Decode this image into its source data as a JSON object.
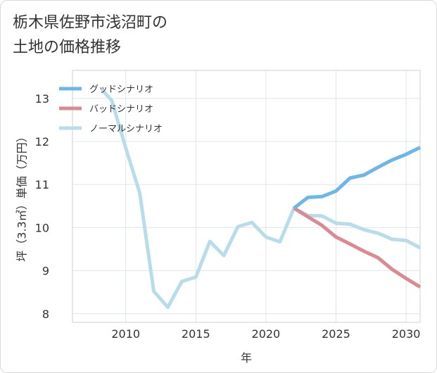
{
  "title_line1": "栃木県佐野市浅沼町の",
  "title_line2": "土地の価格推移",
  "chart_data": {
    "type": "line",
    "xlabel": "年",
    "ylabel": "坪（3.3㎡）単価（万円）",
    "xlim": [
      2006.2,
      2031
    ],
    "ylim": [
      7.8,
      13.65
    ],
    "x_ticks": [
      2010,
      2015,
      2020,
      2025,
      2030
    ],
    "y_ticks": [
      8,
      9,
      10,
      11,
      12,
      13
    ],
    "grid": true,
    "legend_position": "top-left",
    "series": [
      {
        "name": "グッドシナリオ",
        "color": "#6cb7ea",
        "x": [
          2022,
          2023,
          2024,
          2025,
          2026,
          2027,
          2028,
          2029,
          2030,
          2031
        ],
        "y": [
          10.45,
          10.7,
          10.72,
          10.85,
          11.15,
          11.22,
          11.4,
          11.57,
          11.7,
          11.86
        ]
      },
      {
        "name": "バッドシナリオ",
        "color": "#dc8a92",
        "x": [
          2022,
          2023,
          2024,
          2025,
          2026,
          2027,
          2028,
          2029,
          2030,
          2031
        ],
        "y": [
          10.45,
          10.25,
          10.05,
          9.78,
          9.62,
          9.45,
          9.3,
          9.03,
          8.82,
          8.62
        ]
      },
      {
        "name": "ノーマルシナリオ",
        "color": "#b9dcea",
        "x": [
          2008.3,
          2009,
          2010,
          2011,
          2012,
          2013,
          2014,
          2015,
          2016,
          2017,
          2018,
          2019,
          2020,
          2021,
          2022,
          2023,
          2024,
          2025,
          2026,
          2027,
          2028,
          2029,
          2030,
          2031
        ],
        "y": [
          13.2,
          12.95,
          11.85,
          10.8,
          8.52,
          8.15,
          8.75,
          8.85,
          9.68,
          9.35,
          10.02,
          10.12,
          9.78,
          9.67,
          10.45,
          10.28,
          10.27,
          10.1,
          10.08,
          9.95,
          9.87,
          9.73,
          9.7,
          9.53
        ]
      }
    ]
  }
}
